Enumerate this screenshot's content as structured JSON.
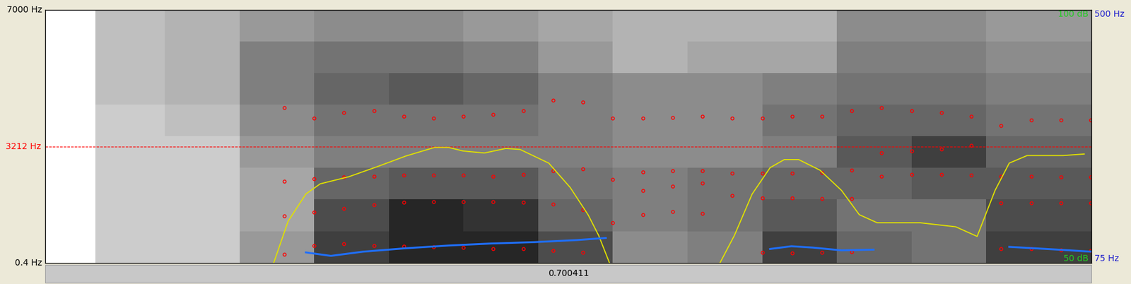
{
  "chart_data": {
    "type": "spectrogram",
    "tick_labels": "y",
    "xlim": [
      0,
      0.700411
    ],
    "ylim": [
      0.4,
      7000
    ],
    "yticks": [
      {
        "value": 0.4,
        "label": "0.4 Hz"
      },
      {
        "value": 7000,
        "label": "7000 Hz"
      }
    ],
    "duration": 0.700411,
    "cursor": {
      "value": 3212,
      "label": "3212 Hz",
      "color": "#ff0000",
      "line_style": "dashed"
    },
    "spectrogram": {
      "x": [
        0,
        0.0335,
        0.08,
        0.13,
        0.18,
        0.23,
        0.28,
        0.33,
        0.38,
        0.43,
        0.48,
        0.53,
        0.58,
        0.63,
        0.68,
        0.700411
      ],
      "y": [
        0.4,
        875,
        1750,
        2625,
        3500,
        4375,
        5250,
        6125,
        7000
      ],
      "range": [
        0,
        1
      ],
      "darkness": [
        [
          0,
          0,
          0,
          0,
          0,
          0,
          0,
          0
        ],
        [
          0.2,
          0.2,
          0.2,
          0.2,
          0.2,
          0.25,
          0.25,
          0.25
        ],
        [
          0.2,
          0.2,
          0.2,
          0.2,
          0.25,
          0.3,
          0.3,
          0.3
        ],
        [
          0.4,
          0.35,
          0.35,
          0.4,
          0.45,
          0.5,
          0.5,
          0.4
        ],
        [
          0.75,
          0.7,
          0.6,
          0.5,
          0.55,
          0.6,
          0.55,
          0.45
        ],
        [
          0.85,
          0.85,
          0.65,
          0.5,
          0.55,
          0.65,
          0.55,
          0.45
        ],
        [
          0.85,
          0.8,
          0.65,
          0.5,
          0.55,
          0.6,
          0.5,
          0.4
        ],
        [
          0.7,
          0.6,
          0.55,
          0.5,
          0.5,
          0.5,
          0.4,
          0.35
        ],
        [
          0.45,
          0.5,
          0.5,
          0.45,
          0.45,
          0.45,
          0.3,
          0.3
        ],
        [
          0.5,
          0.55,
          0.55,
          0.45,
          0.45,
          0.45,
          0.35,
          0.3
        ],
        [
          0.75,
          0.65,
          0.6,
          0.5,
          0.55,
          0.5,
          0.35,
          0.3
        ],
        [
          0.6,
          0.55,
          0.6,
          0.65,
          0.6,
          0.55,
          0.5,
          0.45
        ],
        [
          0.55,
          0.55,
          0.65,
          0.75,
          0.6,
          0.55,
          0.5,
          0.45
        ],
        [
          0.75,
          0.7,
          0.65,
          0.6,
          0.55,
          0.5,
          0.45,
          0.4
        ],
        [
          0.75,
          0.7,
          0.65,
          0.6,
          0.55,
          0.5,
          0.45,
          0.4
        ]
      ]
    },
    "formants": {
      "color": "#ff0000",
      "marker": "o",
      "x": [
        0.16,
        0.18,
        0.2,
        0.22,
        0.24,
        0.26,
        0.28,
        0.3,
        0.32,
        0.34,
        0.36,
        0.38,
        0.4,
        0.42,
        0.44,
        0.46,
        0.48,
        0.5,
        0.52,
        0.54,
        0.56,
        0.58,
        0.6,
        0.62,
        0.64,
        0.66,
        0.68,
        0.7
      ],
      "series": [
        {
          "values": [
            230,
            475,
            530,
            475,
            456,
            437,
            418,
            380,
            380,
            342,
            285,
            null,
            1330,
            1420,
            1360,
            null,
            285,
            266,
            285,
            300,
            null,
            null,
            null,
            null,
            380,
            380,
            360,
            342
          ]
        },
        {
          "values": [
            1300,
            1390,
            1500,
            1600,
            1670,
            1690,
            1690,
            1690,
            1670,
            1620,
            1460,
            1100,
            1990,
            2110,
            2200,
            1860,
            1800,
            1800,
            1780,
            1780,
            2400,
            2450,
            2450,
            2420,
            1650,
            1650,
            1650,
            1650
          ]
        },
        {
          "values": [
            2250,
            2320,
            2380,
            2400,
            2420,
            2430,
            2420,
            2400,
            2450,
            2550,
            2600,
            2300,
            2510,
            2550,
            2550,
            2470,
            2470,
            2470,
            2490,
            2560,
            3050,
            3100,
            3150,
            3250,
            2400,
            2400,
            2380,
            2380
          ]
        },
        {
          "values": [
            4300,
            4000,
            4150,
            4200,
            4050,
            4000,
            4050,
            4100,
            4200,
            4500,
            4450,
            4000,
            4000,
            4020,
            4050,
            4000,
            4000,
            4050,
            4050,
            4200,
            4300,
            4200,
            4150,
            4050,
            3800,
            3950,
            3950,
            3950
          ]
        }
      ]
    },
    "y2lim": [
      50,
      100
    ],
    "y2ticks": [
      {
        "value": 50,
        "label": "50 dB"
      },
      {
        "value": 100,
        "label": "100 dB"
      }
    ],
    "intensity": {
      "axis": "y2",
      "type": "line",
      "color": "#e0e000",
      "x": [
        0.145,
        0.153,
        0.1626,
        0.1745,
        0.1841,
        0.2032,
        0.2223,
        0.2414,
        0.2606,
        0.2701,
        0.2797,
        0.294,
        0.3084,
        0.3179,
        0.3371,
        0.3514,
        0.3634,
        0.3705,
        0.3777,
        0.3801,
        0.4494,
        0.4518,
        0.4614,
        0.4733,
        0.4853,
        0.4948,
        0.5044,
        0.5187,
        0.5331,
        0.545,
        0.557,
        0.5857,
        0.6096,
        0.6239,
        0.6359,
        0.6454,
        0.6574,
        0.6813,
        0.6956
      ],
      "values": [
        45,
        50,
        58.2,
        63.6,
        65.6,
        67.0,
        69.0,
        71.1,
        72.8,
        72.8,
        72.1,
        71.7,
        72.6,
        72.4,
        69.7,
        64.9,
        59.5,
        55.4,
        50,
        45,
        45,
        50,
        55.4,
        63.6,
        68.8,
        70.4,
        70.4,
        68.3,
        64.3,
        59.5,
        57.9,
        57.9,
        57.1,
        55.2,
        64.3,
        69.7,
        71.2,
        71.2,
        71.5
      ]
    },
    "y3lim": [
      75,
      500
    ],
    "y3ticks": [
      {
        "value": 75,
        "label": "75 Hz"
      },
      {
        "value": 500,
        "label": "500 Hz"
      }
    ],
    "pitch": {
      "axis": "y3",
      "type": "line",
      "color": "#1f6fff",
      "x": [
        0.1745,
        0.1912,
        0.2127,
        0.2414,
        0.2701,
        0.2988,
        0.3275,
        0.3562,
        0.3753,
        0.4,
        0.4853,
        0.4996,
        0.5139,
        0.5331,
        0.5546,
        0.6,
        0.6454,
        0.6621,
        0.6861,
        0.7004
      ],
      "values": [
        92.3,
        86.5,
        93.5,
        99.3,
        103.9,
        107.3,
        109.6,
        113.1,
        116.6,
        null,
        98.1,
        102.7,
        100.4,
        95.8,
        97.0,
        null,
        101.6,
        99.3,
        95.8,
        93.5
      ]
    }
  }
}
